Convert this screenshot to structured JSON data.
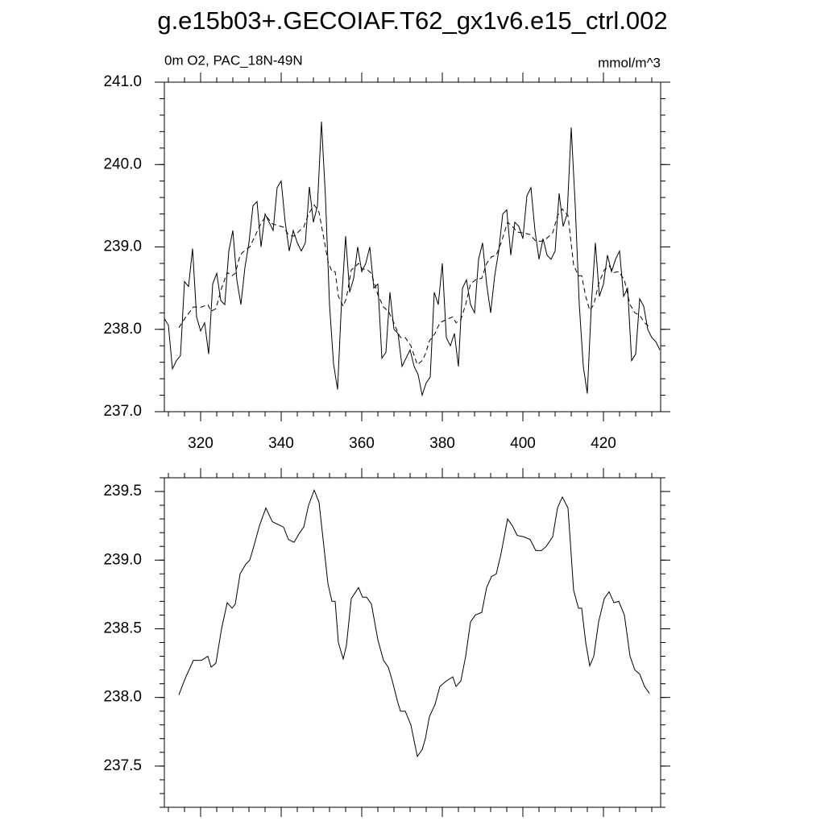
{
  "title": "g.e15b03+.GECOIAF.T62_gx1v6.e15_ctrl.002",
  "chart_data": [
    {
      "type": "line",
      "subtitle_left": "0m O2, PAC_18N-49N",
      "subtitle_right": "mmol/m^3",
      "xlim": [
        311,
        434.2
      ],
      "xticks": [
        320,
        340,
        360,
        380,
        400,
        420
      ],
      "ylim": [
        237,
        241
      ],
      "yticks": [
        {
          "value": 237,
          "label": "237.0"
        },
        {
          "value": 238,
          "label": "238.0"
        },
        {
          "value": 239,
          "label": "239.0"
        },
        {
          "value": 240,
          "label": "240.0"
        },
        {
          "value": 241,
          "label": "241.0"
        }
      ],
      "series": [
        {
          "color": "#000000",
          "line_style": "solid",
          "x": [
            311,
            312,
            313,
            314,
            315,
            316,
            317,
            318,
            319,
            320,
            321,
            322,
            323,
            324,
            325,
            326,
            327,
            328,
            329,
            330,
            331,
            332,
            333,
            334,
            335,
            336,
            337,
            338,
            339,
            340,
            341,
            342,
            343,
            344,
            345,
            346,
            347,
            348,
            349,
            350,
            351,
            352,
            353,
            354,
            355,
            356,
            357,
            358,
            359,
            360,
            361,
            362,
            363,
            364,
            365,
            366,
            367,
            368,
            369,
            370,
            371,
            372,
            373,
            374,
            375,
            376,
            377,
            378,
            379,
            380,
            381,
            382,
            383,
            384,
            385,
            386,
            387,
            388,
            389,
            390,
            391,
            392,
            393,
            394,
            395,
            396,
            397,
            398,
            399,
            400,
            401,
            402,
            403,
            404,
            405,
            406,
            407,
            408,
            409,
            410,
            411,
            412,
            413,
            414,
            415,
            416,
            417,
            418,
            419,
            420,
            421,
            422,
            423,
            424,
            425,
            426,
            427,
            428,
            429,
            430,
            431,
            432,
            433,
            434
          ],
          "values": [
            238.13,
            238.05,
            237.52,
            237.62,
            237.68,
            238.58,
            238.52,
            238.98,
            238.15,
            237.98,
            238.08,
            237.7,
            238.55,
            238.68,
            238.35,
            238.3,
            238.95,
            239.2,
            238.6,
            238.3,
            238.75,
            239.05,
            239.5,
            239.55,
            239.0,
            239.4,
            239.3,
            239.2,
            239.72,
            239.8,
            239.3,
            238.95,
            239.2,
            239.05,
            238.95,
            239.05,
            239.73,
            239.3,
            239.5,
            240.52,
            239.6,
            238.3,
            237.58,
            237.27,
            238.35,
            239.13,
            238.45,
            238.62,
            239.0,
            238.7,
            238.8,
            239.0,
            238.5,
            238.55,
            237.65,
            237.72,
            238.45,
            238.0,
            237.95,
            237.55,
            237.65,
            237.75,
            237.55,
            237.45,
            237.2,
            237.35,
            237.42,
            238.45,
            238.3,
            238.8,
            237.9,
            237.8,
            237.95,
            237.55,
            238.5,
            238.6,
            238.3,
            238.2,
            238.85,
            239.05,
            238.55,
            238.2,
            238.65,
            238.95,
            239.4,
            239.45,
            238.9,
            239.3,
            239.25,
            239.1,
            239.62,
            239.72,
            239.2,
            238.85,
            239.1,
            238.9,
            238.85,
            238.95,
            239.65,
            239.25,
            239.4,
            240.45,
            239.5,
            238.3,
            237.55,
            237.22,
            238.3,
            239.05,
            238.4,
            238.55,
            238.9,
            238.7,
            238.85,
            238.95,
            238.4,
            238.5,
            237.62,
            237.7,
            238.37,
            238.28,
            238.0,
            237.9,
            237.85,
            237.75
          ]
        },
        {
          "color": "#000000",
          "line_style": "dashed",
          "x": [
            314.6,
            316.2,
            318.2,
            320.2,
            321.8,
            322.6,
            323.8,
            325.2,
            326.6,
            327.8,
            328.6,
            329.8,
            331.2,
            332.2,
            333.2,
            334.6,
            336.2,
            337.8,
            339.2,
            340.6,
            341.8,
            343.2,
            344.6,
            345.6,
            346.8,
            348.2,
            349.4,
            350.6,
            351.6,
            352.6,
            353.4,
            354.2,
            355.4,
            356.2,
            357.4,
            359.2,
            360.2,
            361.2,
            362.4,
            364,
            365.4,
            366.6,
            367.6,
            368.8,
            369.6,
            370.8,
            372.2,
            373.8,
            375,
            375.8,
            376.8,
            378.2,
            379.4,
            381,
            382.6,
            383.4,
            384.6,
            385.8,
            387,
            388.2,
            389.8,
            391,
            392.2,
            393.4,
            394.6,
            396.2,
            397.4,
            398.6,
            400.2,
            401.8,
            403.2,
            404.6,
            405.8,
            407.4,
            408.6,
            409.8,
            411.2,
            412.6,
            413.8,
            414.6,
            415.6,
            416.6,
            417.6,
            418.8,
            420.2,
            421.4,
            422.6,
            423.8,
            425.2,
            426.6,
            427.8,
            429,
            430.2,
            431.4
          ],
          "values": [
            238.02,
            238.14,
            238.27,
            238.27,
            238.3,
            238.22,
            238.25,
            238.5,
            238.69,
            238.65,
            238.68,
            238.9,
            238.97,
            239.0,
            239.1,
            239.25,
            239.38,
            239.28,
            239.26,
            239.24,
            239.15,
            239.13,
            239.2,
            239.24,
            239.4,
            239.51,
            239.42,
            239.1,
            238.83,
            238.7,
            238.7,
            238.4,
            238.28,
            238.38,
            238.72,
            238.8,
            238.73,
            238.73,
            238.68,
            238.42,
            238.27,
            238.22,
            238.12,
            237.98,
            237.9,
            237.9,
            237.8,
            237.57,
            237.62,
            237.7,
            237.86,
            237.95,
            238.08,
            238.12,
            238.15,
            238.08,
            238.12,
            238.3,
            238.55,
            238.6,
            238.62,
            238.8,
            238.88,
            238.9,
            239.05,
            239.3,
            239.25,
            239.18,
            239.17,
            239.15,
            239.07,
            239.07,
            239.1,
            239.17,
            239.38,
            239.46,
            239.38,
            238.78,
            238.65,
            238.65,
            238.4,
            238.23,
            238.3,
            238.55,
            238.72,
            238.77,
            238.69,
            238.7,
            238.6,
            238.3,
            238.2,
            238.17,
            238.08,
            238.03
          ]
        }
      ]
    },
    {
      "type": "line",
      "xlim": [
        311,
        434.2
      ],
      "xticks": [
        320,
        340,
        360,
        380,
        400,
        420
      ],
      "ylim": [
        237.2,
        239.6
      ],
      "yticks": [
        237.5,
        {
          "value": 238,
          "label": "238.0"
        },
        238.5,
        {
          "value": 239,
          "label": "239.0"
        },
        239.5
      ],
      "series": [
        {
          "color": "#000000",
          "line_style": "solid",
          "x": [
            314.6,
            316.2,
            318.2,
            320.2,
            321.8,
            322.6,
            323.8,
            325.2,
            326.6,
            327.8,
            328.6,
            329.8,
            331.2,
            332.2,
            333.2,
            334.6,
            336.2,
            337.8,
            339.2,
            340.6,
            341.8,
            343.2,
            344.6,
            345.6,
            346.8,
            348.2,
            349.4,
            350.6,
            351.6,
            352.6,
            353.4,
            354.2,
            355.4,
            356.2,
            357.4,
            359.2,
            360.2,
            361.2,
            362.4,
            364,
            365.4,
            366.6,
            367.6,
            368.8,
            369.6,
            370.8,
            372.2,
            373.8,
            375,
            375.8,
            376.8,
            378.2,
            379.4,
            381,
            382.6,
            383.4,
            384.6,
            385.8,
            387,
            388.2,
            389.8,
            391,
            392.2,
            393.4,
            394.6,
            396.2,
            397.4,
            398.6,
            400.2,
            401.8,
            403.2,
            404.6,
            405.8,
            407.4,
            408.6,
            409.8,
            411.2,
            412.6,
            413.8,
            414.6,
            415.6,
            416.6,
            417.6,
            418.8,
            420.2,
            421.4,
            422.6,
            423.8,
            425.2,
            426.6,
            427.8,
            429,
            430.2,
            431.4
          ],
          "values": [
            238.02,
            238.14,
            238.27,
            238.27,
            238.3,
            238.22,
            238.25,
            238.5,
            238.69,
            238.65,
            238.68,
            238.9,
            238.97,
            239.0,
            239.1,
            239.25,
            239.38,
            239.28,
            239.26,
            239.24,
            239.15,
            239.13,
            239.2,
            239.24,
            239.4,
            239.51,
            239.42,
            239.1,
            238.83,
            238.7,
            238.7,
            238.4,
            238.28,
            238.38,
            238.72,
            238.8,
            238.73,
            238.73,
            238.68,
            238.42,
            238.27,
            238.22,
            238.12,
            237.98,
            237.9,
            237.9,
            237.8,
            237.57,
            237.62,
            237.7,
            237.86,
            237.95,
            238.08,
            238.12,
            238.15,
            238.08,
            238.12,
            238.3,
            238.55,
            238.6,
            238.62,
            238.8,
            238.88,
            238.9,
            239.05,
            239.3,
            239.25,
            239.18,
            239.17,
            239.15,
            239.07,
            239.07,
            239.1,
            239.17,
            239.38,
            239.46,
            239.38,
            238.78,
            238.65,
            238.65,
            238.4,
            238.23,
            238.3,
            238.55,
            238.72,
            238.77,
            238.69,
            238.7,
            238.6,
            238.3,
            238.2,
            238.17,
            238.08,
            238.03
          ]
        }
      ]
    }
  ]
}
